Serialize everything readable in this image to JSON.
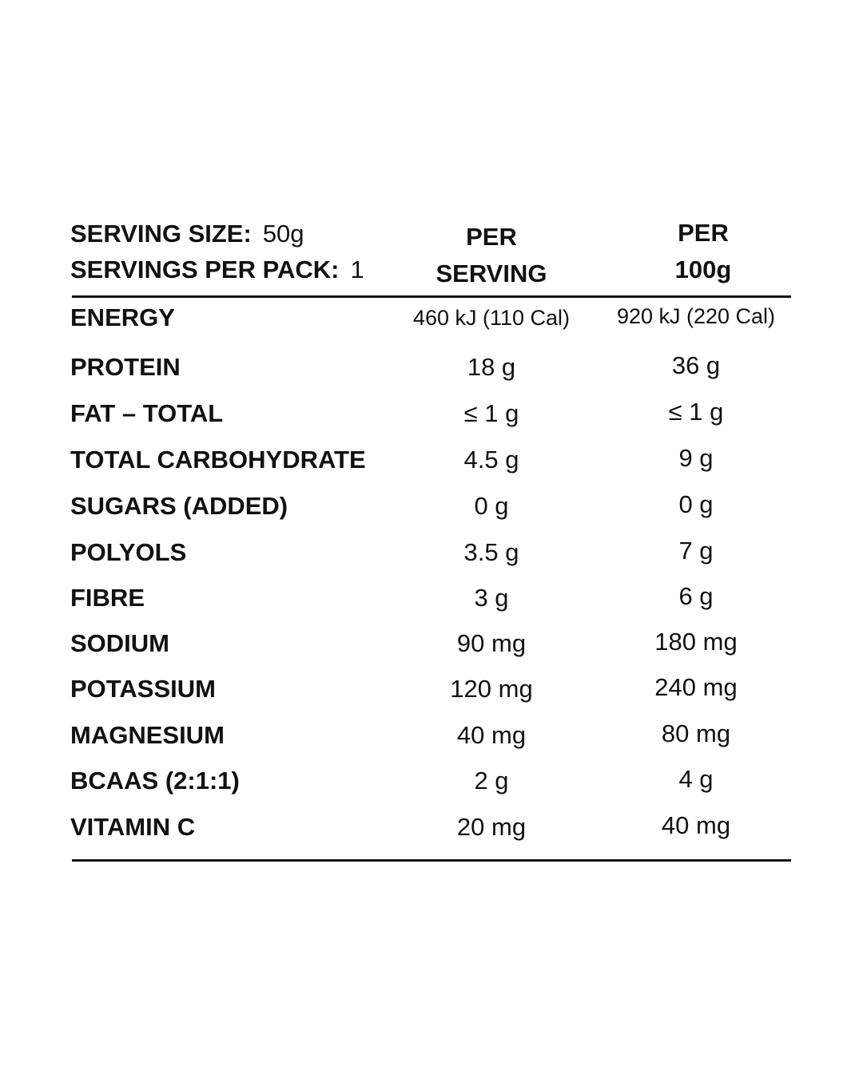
{
  "serving": {
    "size_label": "SERVING SIZE:",
    "size_value": "50g",
    "pack_label": "SERVINGS PER PACK:",
    "pack_value": "1"
  },
  "columns": {
    "per_serving": [
      "PER",
      "SERVING"
    ],
    "per_100g": [
      "PER",
      "100g"
    ]
  },
  "rows": [
    {
      "label": "ENERGY",
      "per_serving": "460 kJ (110 Cal)",
      "per_100g": "920 kJ (220 Cal)"
    },
    {
      "label": "PROTEIN",
      "per_serving": "18 g",
      "per_100g": "36 g"
    },
    {
      "label": "FAT – TOTAL",
      "per_serving": "≤ 1 g",
      "per_100g": "≤ 1 g"
    },
    {
      "label": "TOTAL CARBOHYDRATE",
      "per_serving": "4.5 g",
      "per_100g": "9 g"
    },
    {
      "label": "SUGARS (ADDED)",
      "per_serving": "0 g",
      "per_100g": "0 g"
    },
    {
      "label": "POLYOLS",
      "per_serving": "3.5 g",
      "per_100g": "7 g"
    },
    {
      "label": "FIBRE",
      "per_serving": "3 g",
      "per_100g": "6 g"
    },
    {
      "label": "SODIUM",
      "per_serving": "90 mg",
      "per_100g": "180 mg"
    },
    {
      "label": "POTASSIUM",
      "per_serving": "120 mg",
      "per_100g": "240 mg"
    },
    {
      "label": "MAGNESIUM",
      "per_serving": "40 mg",
      "per_100g": "80 mg"
    },
    {
      "label": "BCAAS (2:1:1)",
      "per_serving": "2 g",
      "per_100g": "4 g"
    },
    {
      "label": "VITAMIN C",
      "per_serving": "20 mg",
      "per_100g": "40 mg"
    }
  ]
}
